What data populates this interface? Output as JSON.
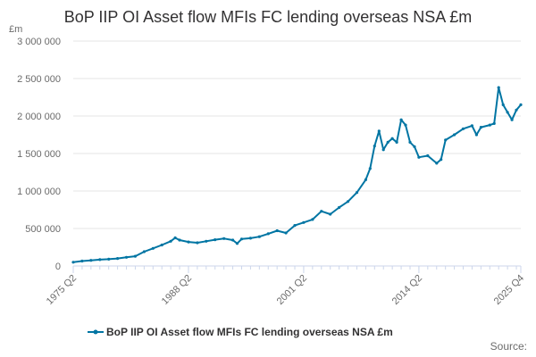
{
  "chart_data": {
    "type": "line",
    "title": "BoP IIP OI Asset flow MFIs FC lending overseas NSA £m",
    "ylabel": "£m",
    "ylim": [
      0,
      3000000
    ],
    "yticks": [
      {
        "value": 0,
        "label": "0"
      },
      {
        "value": 500000,
        "label": "500 000"
      },
      {
        "value": 1000000,
        "label": "1 000 000"
      },
      {
        "value": 1500000,
        "label": "1 500 000"
      },
      {
        "value": 2000000,
        "label": "2 000 000"
      },
      {
        "value": 2500000,
        "label": "2 500 000"
      },
      {
        "value": 3000000,
        "label": "3 000 000"
      }
    ],
    "xlim": [
      "1975 Q2",
      "2025 Q4"
    ],
    "xticks": [
      "1975 Q2",
      "1988 Q2",
      "2001 Q2",
      "2014 Q2",
      "2025 Q4"
    ],
    "grid": true,
    "legend_position": "bottom",
    "series": [
      {
        "name": "BoP IIP OI Asset flow MFIs FC lending overseas NSA £m",
        "color": "#0075a3",
        "points": [
          [
            "1975 Q2",
            50000
          ],
          [
            "1976 Q2",
            65000
          ],
          [
            "1977 Q2",
            75000
          ],
          [
            "1978 Q2",
            85000
          ],
          [
            "1979 Q2",
            90000
          ],
          [
            "1980 Q2",
            100000
          ],
          [
            "1981 Q2",
            115000
          ],
          [
            "1982 Q2",
            130000
          ],
          [
            "1983 Q2",
            190000
          ],
          [
            "1984 Q2",
            235000
          ],
          [
            "1985 Q2",
            280000
          ],
          [
            "1986 Q2",
            330000
          ],
          [
            "1986 Q4",
            375000
          ],
          [
            "1987 Q2",
            345000
          ],
          [
            "1988 Q2",
            320000
          ],
          [
            "1989 Q2",
            310000
          ],
          [
            "1990 Q2",
            330000
          ],
          [
            "1991 Q2",
            350000
          ],
          [
            "1992 Q2",
            365000
          ],
          [
            "1993 Q2",
            345000
          ],
          [
            "1993 Q4",
            300000
          ],
          [
            "1994 Q2",
            360000
          ],
          [
            "1995 Q2",
            370000
          ],
          [
            "1996 Q2",
            390000
          ],
          [
            "1997 Q2",
            430000
          ],
          [
            "1998 Q2",
            470000
          ],
          [
            "1999 Q2",
            440000
          ],
          [
            "2000 Q2",
            540000
          ],
          [
            "2001 Q2",
            580000
          ],
          [
            "2002 Q2",
            620000
          ],
          [
            "2003 Q2",
            730000
          ],
          [
            "2004 Q2",
            690000
          ],
          [
            "2005 Q2",
            780000
          ],
          [
            "2006 Q2",
            860000
          ],
          [
            "2007 Q2",
            980000
          ],
          [
            "2008 Q2",
            1150000
          ],
          [
            "2008 Q4",
            1300000
          ],
          [
            "2009 Q2",
            1600000
          ],
          [
            "2009 Q4",
            1800000
          ],
          [
            "2010 Q2",
            1550000
          ],
          [
            "2010 Q4",
            1650000
          ],
          [
            "2011 Q2",
            1700000
          ],
          [
            "2011 Q4",
            1650000
          ],
          [
            "2012 Q2",
            1950000
          ],
          [
            "2012 Q4",
            1880000
          ],
          [
            "2013 Q2",
            1650000
          ],
          [
            "2013 Q4",
            1590000
          ],
          [
            "2014 Q2",
            1450000
          ],
          [
            "2015 Q2",
            1470000
          ],
          [
            "2016 Q2",
            1370000
          ],
          [
            "2016 Q4",
            1420000
          ],
          [
            "2017 Q2",
            1680000
          ],
          [
            "2018 Q2",
            1750000
          ],
          [
            "2019 Q2",
            1830000
          ],
          [
            "2020 Q2",
            1870000
          ],
          [
            "2020 Q4",
            1750000
          ],
          [
            "2021 Q2",
            1850000
          ],
          [
            "2022 Q2",
            1880000
          ],
          [
            "2022 Q4",
            1900000
          ],
          [
            "2023 Q2",
            2380000
          ],
          [
            "2023 Q4",
            2150000
          ],
          [
            "2024 Q2",
            2050000
          ],
          [
            "2024 Q4",
            1950000
          ],
          [
            "2025 Q2",
            2080000
          ],
          [
            "2025 Q4",
            2150000
          ]
        ]
      }
    ],
    "source_label": "Source:"
  }
}
